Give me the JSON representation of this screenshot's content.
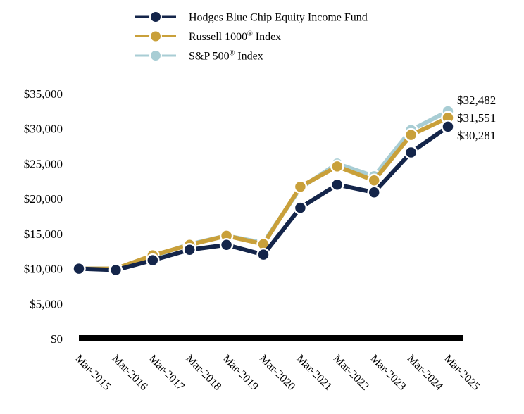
{
  "chart_data": {
    "type": "line",
    "categories": [
      "Mar-2015",
      "Mar-2016",
      "Mar-2017",
      "Mar-2018",
      "Mar-2019",
      "Mar-2020",
      "Mar-2021",
      "Mar-2022",
      "Mar-2023",
      "Mar-2024",
      "Mar-2025"
    ],
    "series": [
      {
        "name": "S&P 500",
        "name_suffix": "® Index",
        "color": "#a8cdd4",
        "values": [
          10000,
          9990,
          11750,
          13500,
          14700,
          13700,
          21500,
          25000,
          23200,
          29800,
          32482
        ],
        "end_label": "$32,482"
      },
      {
        "name": "Russell 1000",
        "name_suffix": "® Index",
        "color": "#c9a03a",
        "values": [
          10000,
          10000,
          11900,
          13400,
          14700,
          13500,
          21700,
          24600,
          22600,
          29100,
          31551
        ],
        "end_label": "$31,551"
      },
      {
        "name": "Hodges Blue Chip Equity Income Fund",
        "name_suffix": "",
        "color": "#14254a",
        "values": [
          10000,
          9800,
          11200,
          12700,
          13400,
          12000,
          18700,
          22000,
          20900,
          26600,
          30281
        ],
        "end_label": "$30,281"
      }
    ],
    "legend_order": [
      2,
      1,
      0
    ],
    "y_ticks": [
      "$35,000",
      "$30,000",
      "$25,000",
      "$20,000",
      "$15,000",
      "$10,000",
      "$5,000",
      "$0"
    ],
    "y_tick_values": [
      35000,
      30000,
      25000,
      20000,
      15000,
      10000,
      5000,
      0
    ],
    "ylim": [
      0,
      35000
    ],
    "legend_position": "top",
    "grid": false
  }
}
